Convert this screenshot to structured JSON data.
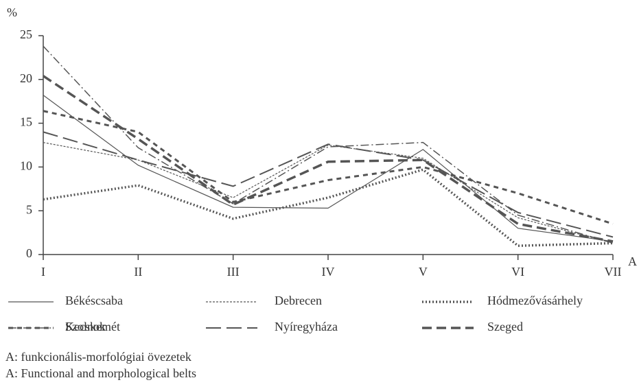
{
  "chart_data": {
    "type": "line",
    "y_label": "%",
    "x_label": "A",
    "categories": [
      "I",
      "II",
      "III",
      "IV",
      "V",
      "VI",
      "VII"
    ],
    "ylim": [
      0,
      25
    ],
    "yticks": [
      0,
      5,
      10,
      15,
      20,
      25
    ],
    "series": [
      {
        "name": "Békéscsaba",
        "color": "#555",
        "width": 1.2,
        "dash": "none",
        "values": [
          18.2,
          10.2,
          5.4,
          5.3,
          12.0,
          3.0,
          1.5
        ]
      },
      {
        "name": "Debrecen",
        "color": "#555",
        "width": 1.2,
        "dash": "3 2",
        "values": [
          12.8,
          10.8,
          6.5,
          12.5,
          11.0,
          4.2,
          1.3
        ]
      },
      {
        "name": "Hódmezővásárhely",
        "color": "#555",
        "width": 3.5,
        "dash": "2 3",
        "values": [
          6.3,
          7.9,
          4.1,
          6.5,
          9.7,
          1.0,
          1.3
        ]
      },
      {
        "name": "Kecskemét",
        "color": "#555",
        "width": 1.5,
        "dash": "12 4 2 4",
        "values": [
          23.8,
          12.2,
          5.8,
          12.3,
          12.8,
          4.5,
          1.3
        ]
      },
      {
        "name": "Nyíregyháza",
        "color": "#555",
        "width": 2,
        "dash": "22 8",
        "values": [
          14.0,
          10.8,
          7.8,
          12.6,
          10.8,
          4.8,
          2.0
        ]
      },
      {
        "name": "Szeged",
        "color": "#555",
        "width": 3.5,
        "dash": "14 7",
        "values": [
          20.4,
          13.2,
          5.7,
          10.6,
          10.8,
          3.5,
          1.5
        ]
      },
      {
        "name": "Szolnok",
        "color": "#555",
        "width": 3,
        "dash": "7 6",
        "values": [
          16.4,
          14.0,
          6.0,
          8.5,
          10.0,
          7.0,
          3.5
        ]
      }
    ],
    "notes": [
      "A: funkcionális-morfológiai övezetek",
      "A: Functional and morphological belts"
    ]
  }
}
